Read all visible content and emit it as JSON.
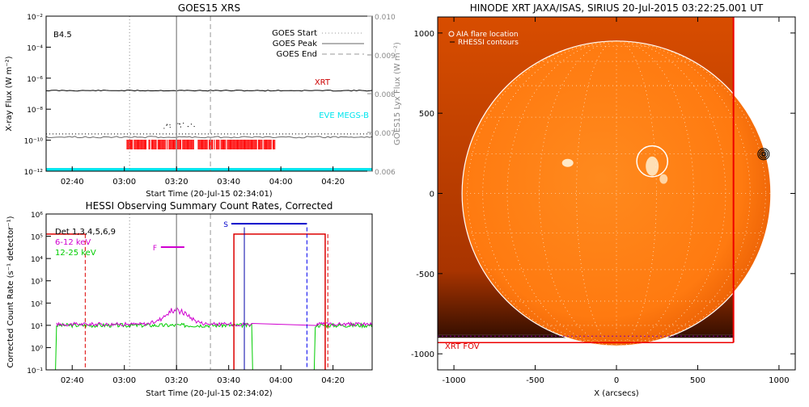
{
  "chart_data": [
    {
      "type": "line",
      "title": "GOES15 XRS",
      "xlabel": "Start Time (20-Jul-15 02:34:01)",
      "ylabel": "X-ray Flux (W m⁻²)",
      "ylabel_right": "GOES15 Lyx Flux (W m⁻²)",
      "annotation": "B4.5",
      "xlim": [
        "02:30",
        "04:35"
      ],
      "ylim_log10": [
        -12,
        -2
      ],
      "y_ticks_left": [
        "10⁻¹²",
        "10⁻¹⁰",
        "10⁻⁸",
        "10⁻⁶",
        "10⁻⁴",
        "10⁻²"
      ],
      "y_ticks_right": [
        "0.006",
        "0.007",
        "0.008",
        "0.009",
        "0.010"
      ],
      "x_ticks": [
        "02:40",
        "03:00",
        "03:20",
        "03:40",
        "04:00",
        "04:20"
      ],
      "legend": [
        "GOES Start",
        "GOES Peak",
        "GOES End"
      ],
      "legend_position": "top-right",
      "vlines": {
        "start": "03:02",
        "peak": "03:20",
        "end": "03:33"
      },
      "series": [
        {
          "name": "XRT",
          "color": "#cc0000",
          "log10_flux": -6.8
        },
        {
          "name": "EVE MEGS-B",
          "color": "#00e5ee",
          "log10_flux": -11.9
        }
      ],
      "black_trace_log10": -6.8,
      "gray_trace_log10": -9.8,
      "dotted_trace_log10": -9.6,
      "xrt_observation_bar": {
        "from": "03:01",
        "to": "03:58",
        "color": "#ff0000"
      }
    },
    {
      "type": "line",
      "title": "HESSI Observing Summary Count Rates, Corrected",
      "xlabel": "Start Time (20-Jul-15 02:34:02)",
      "ylabel": "Corrected Count Rate (s⁻¹ detector⁻¹)",
      "xlim": [
        "02:30",
        "04:35"
      ],
      "ylim_log10": [
        -1,
        6
      ],
      "y_ticks": [
        "10⁻¹",
        "10⁰",
        "10¹",
        "10²",
        "10³",
        "10⁴",
        "10⁵",
        "10⁶"
      ],
      "x_ticks": [
        "02:40",
        "03:00",
        "03:20",
        "03:40",
        "04:00",
        "04:20"
      ],
      "legend": [
        "Det 1,3,4,5,6,9",
        "6-12 keV",
        "12-25 keV"
      ],
      "legend_colors": [
        "#000000",
        "#d000d0",
        "#00cc00"
      ],
      "markers": {
        "F": "F",
        "S": "S"
      },
      "flag_F": {
        "from": "03:14",
        "to": "03:23",
        "color": "#d000d0"
      },
      "flag_S": {
        "from": "03:46",
        "to": "04:10",
        "color": "#0000cc"
      },
      "night_red_dashed": [
        "02:45",
        "04:18"
      ],
      "saa_red_box": {
        "from": "03:42",
        "to": "04:17"
      },
      "blue_dashed": "04:10",
      "series": [
        {
          "name": "6-12 keV",
          "color": "#d000d0",
          "baseline_log10": 1.05,
          "peak_log10": 1.7,
          "peak_time": "03:20"
        },
        {
          "name": "12-25 keV",
          "color": "#00cc00",
          "baseline_log10": 1.0
        }
      ],
      "data_gaps": [
        [
          "02:30",
          "02:34"
        ],
        [
          "03:49",
          "04:13"
        ]
      ]
    },
    {
      "type": "heatmap",
      "title": "HINODE XRT JAXA/ISAS, SIRIUS 20-Jul-2015 03:22:25.001 UT",
      "xlabel": "X (arcsecs)",
      "xlim": [
        -1100,
        1100
      ],
      "ylim": [
        -1100,
        1100
      ],
      "x_ticks": [
        "-1000",
        "-500",
        "0",
        "500",
        "1000"
      ],
      "y_ticks": [
        "-1000",
        "-500",
        "0",
        "500",
        "1000"
      ],
      "legend": [
        "AIA flare location",
        "RHESSI contours"
      ],
      "legend_position": "top-left",
      "fov_label": "XRT FOV",
      "flare_circle": {
        "x": 220,
        "y": 200,
        "r": 95
      },
      "solar_radius_arcsec": 950,
      "contour": {
        "x": 905,
        "y": 245
      }
    }
  ]
}
